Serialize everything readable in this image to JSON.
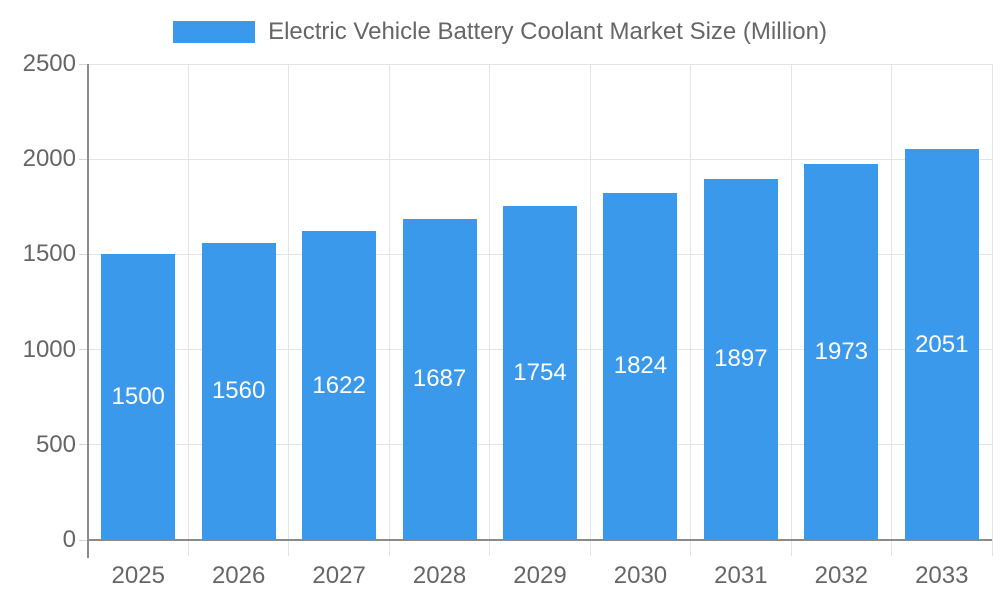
{
  "chart_data": {
    "type": "bar",
    "title": "Electric Vehicle Battery Coolant Market Size (Million)",
    "categories": [
      "2025",
      "2026",
      "2027",
      "2028",
      "2029",
      "2030",
      "2031",
      "2032",
      "2033"
    ],
    "values": [
      1500,
      1560,
      1622,
      1687,
      1754,
      1824,
      1897,
      1973,
      2051
    ],
    "xlabel": "",
    "ylabel": "",
    "ylim": [
      0,
      2500
    ],
    "yticks": [
      0,
      500,
      1000,
      1500,
      2000,
      2500
    ],
    "grid": "both",
    "legend_position": "top-center",
    "value_labels": "inside-center",
    "colors": {
      "bar": "#3B99EC",
      "value_label": "#FFFFFF",
      "axis_text": "#666666",
      "gridline": "#E4E4E4",
      "axis_line": "#8C8C8C",
      "tick": "#D6D6D6",
      "background": "#FFFFFF"
    }
  }
}
